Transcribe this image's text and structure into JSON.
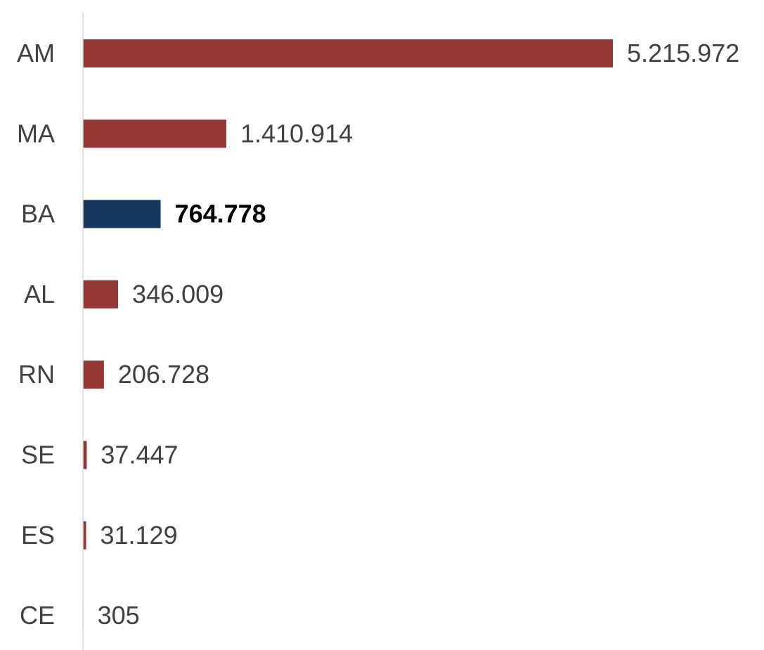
{
  "chart_data": {
    "type": "bar",
    "orientation": "horizontal",
    "title": "",
    "xlabel": "",
    "ylabel": "",
    "grid": false,
    "legend": "none",
    "categories": [
      "AM",
      "MA",
      "BA",
      "AL",
      "RN",
      "SE",
      "ES",
      "CE"
    ],
    "values": [
      5215972,
      1410914,
      764778,
      346009,
      206728,
      37447,
      31129,
      305
    ],
    "value_labels": [
      "5.215.972",
      "1.410.914",
      "764.778",
      "346.009",
      "206.728",
      "37.447",
      "31.129",
      "305"
    ],
    "highlight_category": "BA",
    "colors": {
      "default_bar": "#943634",
      "highlight_bar": "#17375e",
      "axis_line": "#d9d9d9",
      "label_text": "#404040",
      "highlight_text": "#000000"
    }
  }
}
